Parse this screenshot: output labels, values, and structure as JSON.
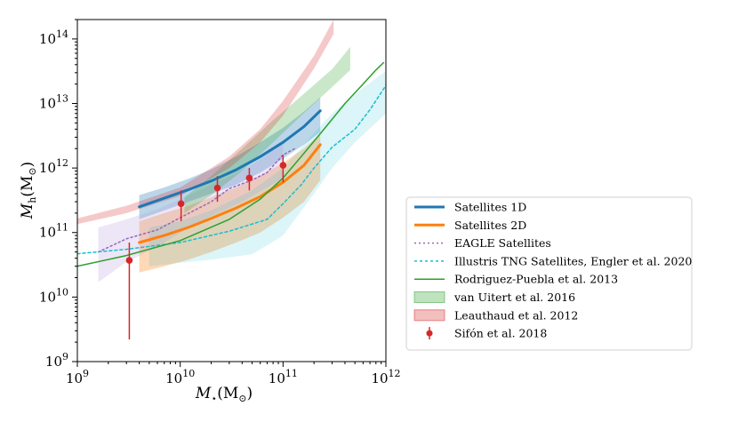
{
  "chart_data": {
    "type": "line",
    "xlabel_main": "M",
    "xlabel_sub": "⋆",
    "xlabel_unit": "(M",
    "xlabel_unit_sub": "⊙",
    "xlabel_close": ")",
    "ylabel_main": "M",
    "ylabel_sub": "h",
    "ylabel_unit": "(M",
    "ylabel_unit_sub": "⊙",
    "ylabel_close": ")",
    "x_scale": "log",
    "y_scale": "log",
    "xlim": [
      1000000000.0,
      1000000000000.0
    ],
    "ylim": [
      1000000000.0,
      200000000000000.0
    ],
    "x_ticks": [
      {
        "value": 1000000000.0,
        "base": "10",
        "exp": "9"
      },
      {
        "value": 10000000000.0,
        "base": "10",
        "exp": "10"
      },
      {
        "value": 100000000000.0,
        "base": "10",
        "exp": "11"
      },
      {
        "value": 1000000000000.0,
        "base": "10",
        "exp": "12"
      }
    ],
    "y_ticks": [
      {
        "value": 1000000000.0,
        "base": "10",
        "exp": "9"
      },
      {
        "value": 10000000000.0,
        "base": "10",
        "exp": "10"
      },
      {
        "value": 100000000000.0,
        "base": "10",
        "exp": "11"
      },
      {
        "value": 1000000000000.0,
        "base": "10",
        "exp": "12"
      },
      {
        "value": 10000000000000.0,
        "base": "10",
        "exp": "13"
      },
      {
        "value": 100000000000000.0,
        "base": "10",
        "exp": "14"
      }
    ],
    "grid": false,
    "legend_position": "right",
    "bands": [
      {
        "name": "Satellites 1D band",
        "color": "#1f77b4",
        "opacity": 0.3,
        "x": [
          4000000000.0,
          7000000000.0,
          12000000000.0,
          20000000000.0,
          35000000000.0,
          60000000000.0,
          100000000000.0,
          160000000000.0,
          230000000000.0
        ],
        "lower": [
          160000000000.0,
          220000000000.0,
          300000000000.0,
          400000000000.0,
          550000000000.0,
          850000000000.0,
          1400000000000.0,
          2300000000000.0,
          3600000000000.0
        ],
        "upper": [
          380000000000.0,
          500000000000.0,
          680000000000.0,
          950000000000.0,
          1500000000000.0,
          2500000000000.0,
          4200000000000.0,
          7500000000000.0,
          12500000000000.0
        ]
      },
      {
        "name": "Satellites 2D band",
        "color": "#ff7f0e",
        "opacity": 0.3,
        "x": [
          4000000000.0,
          7000000000.0,
          12000000000.0,
          20000000000.0,
          35000000000.0,
          60000000000.0,
          100000000000.0,
          160000000000.0,
          230000000000.0
        ],
        "lower": [
          24000000000.0,
          30000000000.0,
          38000000000.0,
          50000000000.0,
          70000000000.0,
          100000000000.0,
          170000000000.0,
          300000000000.0,
          650000000000.0
        ],
        "upper": [
          150000000000.0,
          200000000000.0,
          260000000000.0,
          350000000000.0,
          500000000000.0,
          760000000000.0,
          1200000000000.0,
          2000000000000.0,
          3400000000000.0
        ]
      },
      {
        "name": "EAGLE Satellites band",
        "color": "#b39ddb",
        "opacity": 0.25,
        "x": [
          1600000000.0,
          3000000000.0,
          6000000000.0,
          10000000000.0,
          20000000000.0,
          40000000000.0,
          70000000000.0,
          100000000000.0
        ],
        "lower": [
          17000000000.0,
          35000000000.0,
          60000000000.0,
          100000000000.0,
          180000000000.0,
          300000000000.0,
          500000000000.0,
          700000000000.0
        ],
        "upper": [
          120000000000.0,
          160000000000.0,
          230000000000.0,
          330000000000.0,
          550000000000.0,
          900000000000.0,
          1600000000000.0,
          2600000000000.0
        ]
      },
      {
        "name": "Illustris TNG band",
        "color": "#17becf",
        "opacity": 0.15,
        "x": [
          5000000000.0,
          10000000000.0,
          20000000000.0,
          50000000000.0,
          100000000000.0,
          200000000000.0,
          300000000000.0,
          500000000000.0,
          1000000000000.0
        ],
        "lower": [
          30000000000.0,
          34000000000.0,
          38000000000.0,
          46000000000.0,
          90000000000.0,
          400000000000.0,
          1000000000000.0,
          2500000000000.0,
          7000000000000.0
        ],
        "upper": [
          120000000000.0,
          150000000000.0,
          220000000000.0,
          450000000000.0,
          1000000000000.0,
          3500000000000.0,
          7000000000000.0,
          14000000000000.0,
          32000000000000.0
        ]
      },
      {
        "name": "van Uitert et al. 2016",
        "color": "#2ca02c",
        "opacity": 0.25,
        "x": [
          11000000000.0,
          20000000000.0,
          40000000000.0,
          80000000000.0,
          150000000000.0,
          300000000000.0,
          450000000000.0
        ],
        "lower": [
          200000000000.0,
          380000000000.0,
          900000000000.0,
          2500000000000.0,
          6500000000000.0,
          18000000000000.0,
          33000000000000.0
        ],
        "upper": [
          350000000000.0,
          750000000000.0,
          2000000000000.0,
          5500000000000.0,
          13000000000000.0,
          34000000000000.0,
          75000000000000.0
        ]
      },
      {
        "name": "Leauthaud et al. 2012",
        "color": "#d62728",
        "opacity": 0.25,
        "x": [
          1000000000.0,
          3000000000.0,
          10000000000.0,
          30000000000.0,
          60000000000.0,
          100000000000.0,
          200000000000.0,
          310000000000.0
        ],
        "lower": [
          135000000000.0,
          200000000000.0,
          370000000000.0,
          1000000000000.0,
          2500000000000.0,
          6500000000000.0,
          35000000000000.0,
          120000000000000.0
        ],
        "upper": [
          165000000000.0,
          260000000000.0,
          500000000000.0,
          1500000000000.0,
          4000000000000.0,
          11000000000000.0,
          55000000000000.0,
          200000000000000.0
        ]
      }
    ],
    "series": [
      {
        "name": "Satellites 1D",
        "color": "#1f77b4",
        "width": 3,
        "dash": "",
        "x": [
          4000000000.0,
          7000000000.0,
          12000000000.0,
          20000000000.0,
          35000000000.0,
          60000000000.0,
          100000000000.0,
          160000000000.0,
          230000000000.0
        ],
        "y": [
          250000000000.0,
          340000000000.0,
          460000000000.0,
          630000000000.0,
          940000000000.0,
          1500000000000.0,
          2500000000000.0,
          4400000000000.0,
          7700000000000.0
        ]
      },
      {
        "name": "Satellites 2D",
        "color": "#ff7f0e",
        "width": 3,
        "dash": "",
        "x": [
          4000000000.0,
          7000000000.0,
          12000000000.0,
          20000000000.0,
          35000000000.0,
          60000000000.0,
          100000000000.0,
          160000000000.0,
          230000000000.0
        ],
        "y": [
          70000000000.0,
          90000000000.0,
          120000000000.0,
          165000000000.0,
          240000000000.0,
          360000000000.0,
          600000000000.0,
          1100000000000.0,
          2300000000000.0
        ]
      },
      {
        "name": "EAGLE Satellites",
        "color": "#9467bd",
        "width": 1.5,
        "dash": "2,3",
        "x": [
          1600000000.0,
          3000000000.0,
          6000000000.0,
          10000000000.0,
          20000000000.0,
          30000000000.0,
          50000000000.0,
          70000000000.0,
          100000000000.0,
          130000000000.0
        ],
        "y": [
          50000000000.0,
          80000000000.0,
          110000000000.0,
          170000000000.0,
          300000000000.0,
          480000000000.0,
          650000000000.0,
          850000000000.0,
          1600000000000.0,
          2000000000000.0
        ]
      },
      {
        "name": "Illustris TNG Satellites,  Engler et al. 2020",
        "color": "#17becf",
        "width": 1.5,
        "dash": "3,3",
        "x": [
          1000000000.0,
          3000000000.0,
          10000000000.0,
          30000000000.0,
          70000000000.0,
          100000000000.0,
          150000000000.0,
          200000000000.0,
          300000000000.0,
          500000000000.0,
          700000000000.0,
          1000000000000.0
        ],
        "y": [
          47000000000.0,
          55000000000.0,
          70000000000.0,
          105000000000.0,
          160000000000.0,
          280000000000.0,
          550000000000.0,
          1000000000000.0,
          2100000000000.0,
          4000000000000.0,
          8000000000000.0,
          19000000000000.0
        ]
      },
      {
        "name": "Rodriguez-Puebla et al. 2013",
        "color": "#2ca02c",
        "width": 1.5,
        "dash": "",
        "x": [
          1000000000.0,
          3000000000.0,
          10000000000.0,
          30000000000.0,
          60000000000.0,
          100000000000.0,
          150000000000.0,
          250000000000.0,
          400000000000.0,
          600000000000.0,
          800000000000.0,
          950000000000.0
        ],
        "y": [
          30000000000.0,
          44000000000.0,
          75000000000.0,
          160000000000.0,
          330000000000.0,
          700000000000.0,
          1500000000000.0,
          4000000000000.0,
          10000000000000.0,
          20000000000000.0,
          33000000000000.0,
          43000000000000.0
        ]
      }
    ],
    "points": {
      "name": "Sifón et al. 2018",
      "color": "#d62728",
      "x": [
        3200000000.0,
        10200000000.0,
        23000000000.0,
        47000000000.0,
        100000000000.0
      ],
      "y": [
        37000000000.0,
        280000000000.0,
        490000000000.0,
        700000000000.0,
        1100000000000.0
      ],
      "yerr_low": [
        2200000000.0,
        150000000000.0,
        300000000000.0,
        450000000000.0,
        600000000000.0
      ],
      "yerr_high": [
        70000000000.0,
        450000000000.0,
        750000000000.0,
        1000000000000.0,
        1600000000000.0
      ]
    },
    "legend": [
      {
        "label": "Satellites 1D",
        "kind": "line",
        "color": "#1f77b4",
        "width": 3,
        "dash": ""
      },
      {
        "label": "Satellites 2D",
        "kind": "line",
        "color": "#ff7f0e",
        "width": 3,
        "dash": ""
      },
      {
        "label": "EAGLE Satellites",
        "kind": "line",
        "color": "#9467bd",
        "width": 1.5,
        "dash": "2,3"
      },
      {
        "label": "Illustris TNG Satellites,  Engler et al. 2020",
        "kind": "line",
        "color": "#17becf",
        "width": 1.5,
        "dash": "3,3"
      },
      {
        "label": "Rodriguez-Puebla et al. 2013",
        "kind": "line",
        "color": "#2ca02c",
        "width": 1.5,
        "dash": ""
      },
      {
        "label": "van Uitert et al. 2016",
        "kind": "patch",
        "color": "#2ca02c",
        "opacity": 0.3
      },
      {
        "label": "Leauthaud et al. 2012",
        "kind": "patch",
        "color": "#d62728",
        "opacity": 0.3
      },
      {
        "label": "Sifón et al. 2018",
        "kind": "errorpoint",
        "color": "#d62728"
      }
    ]
  }
}
